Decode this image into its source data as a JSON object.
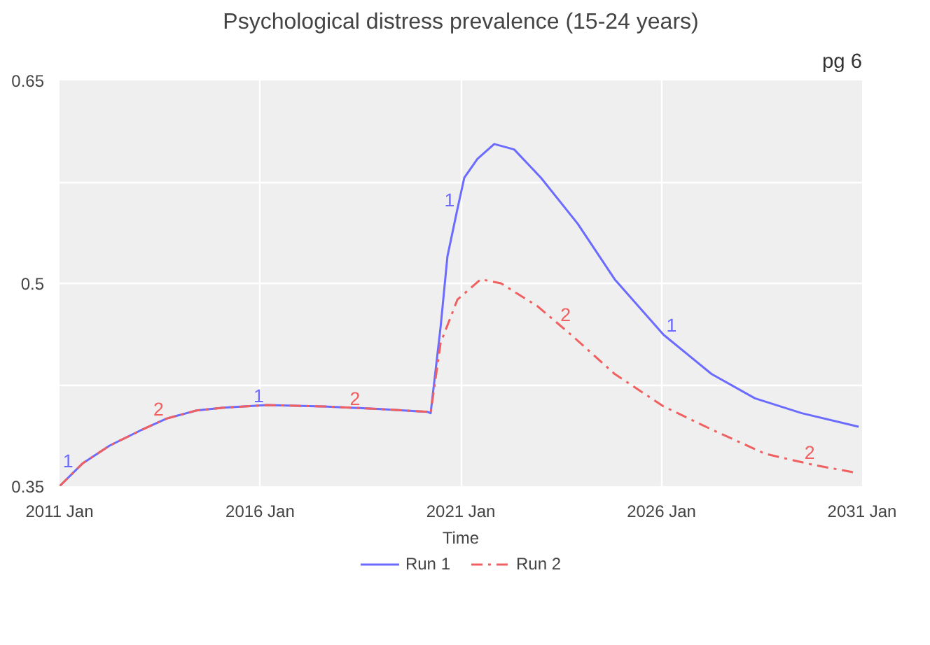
{
  "chart_data": {
    "type": "line",
    "title": "Psychological distress prevalence (15-24 years)",
    "xlabel": "Time",
    "xlim": [
      "2011-01",
      "2031-01"
    ],
    "ylim": [
      0.35,
      0.65
    ],
    "xticks": [
      {
        "value": "2011-01",
        "label": "2011 Jan"
      },
      {
        "value": "2016-01",
        "label": "2016 Jan"
      },
      {
        "value": "2021-01",
        "label": "2021 Jan"
      },
      {
        "value": "2026-01",
        "label": "2026 Jan"
      },
      {
        "value": "2031-01",
        "label": "2031 Jan"
      }
    ],
    "yticks": [
      0.35,
      {
        "value": 0.425,
        "label": null
      },
      0.5,
      {
        "value": 0.575,
        "label": null
      },
      0.65
    ],
    "grid": true,
    "legend": "bottom",
    "series": [
      {
        "name": "Run 1",
        "color": "#6b6bff",
        "line_style": "solid",
        "x": [
          "2011-01",
          "2011-08",
          "2012-04",
          "2013-01",
          "2013-09",
          "2014-06",
          "2015-02",
          "2016-03",
          "2017-08",
          "2019-01",
          "2020-03",
          "2020-04",
          "2020-07",
          "2020-09",
          "2020-12",
          "2021-02",
          "2021-06",
          "2021-11",
          "2022-05",
          "2023-01",
          "2023-12",
          "2024-11",
          "2026-01-20",
          "2027-04",
          "2028-05",
          "2029-07",
          "2030-12"
        ],
        "values": [
          0.35,
          0.367,
          0.38,
          0.391,
          0.4,
          0.406,
          0.408,
          0.41,
          0.409,
          0.407,
          0.405,
          0.404,
          0.468,
          0.52,
          0.555,
          0.578,
          0.592,
          0.603,
          0.599,
          0.578,
          0.544,
          0.503,
          0.462,
          0.433,
          0.415,
          0.404,
          0.394
        ]
      },
      {
        "name": "Run 2",
        "color": "#f06060",
        "line_style": "dashed",
        "x": [
          "2011-01",
          "2011-08",
          "2012-04",
          "2013-01",
          "2013-09",
          "2014-06",
          "2015-02",
          "2016-03",
          "2017-08",
          "2019-01",
          "2020-03",
          "2020-04",
          "2020-07",
          "2020-12",
          "2021-07",
          "2022-01",
          "2022-12",
          "2023-10",
          "2024-11",
          "2026-01-20",
          "2027-04",
          "2028-08",
          "2029-10",
          "2030-11"
        ],
        "values": [
          0.35,
          0.367,
          0.38,
          0.391,
          0.4,
          0.406,
          0.408,
          0.41,
          0.409,
          0.407,
          0.405,
          0.404,
          0.456,
          0.488,
          0.503,
          0.5,
          0.483,
          0.462,
          0.433,
          0.409,
          0.392,
          0.374,
          0.366,
          0.36
        ]
      }
    ],
    "annotations": [
      "pg 6",
      {
        "text": "1",
        "x": "2011-06",
        "y": 0.362
      },
      {
        "text": "1",
        "x": "2016-03",
        "y": 0.41
      },
      {
        "text": "1",
        "x": "2020-12",
        "y": 0.555
      },
      {
        "text": "1",
        "x": "2026-01-20",
        "y": 0.462
      },
      {
        "text": "2",
        "x": "2013-09",
        "y": 0.4
      },
      {
        "text": "2",
        "x": "2018-03",
        "y": 0.408
      },
      {
        "text": "2",
        "x": "2023-06",
        "y": 0.47
      },
      {
        "text": "2",
        "x": "2029-07",
        "y": 0.368
      }
    ]
  }
}
